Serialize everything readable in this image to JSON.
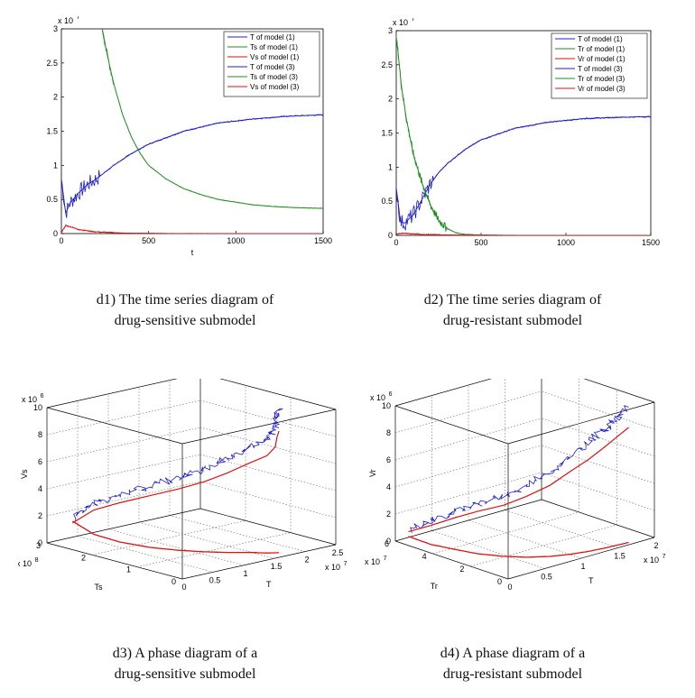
{
  "colors": {
    "T": "#1f1fcc",
    "S": "#1e8f1e",
    "V": "#dd1111",
    "axis": "#000000",
    "grid": "#666666"
  },
  "captions": {
    "d1": {
      "line1": "d1) The time series diagram of",
      "line2": "drug-sensitive submodel"
    },
    "d2": {
      "line1": "d2) The time series diagram of",
      "line2": "drug-resistant submodel"
    },
    "d3": {
      "line1": "d3) A phase diagram of a",
      "line2": "drug-sensitive submodel"
    },
    "d4": {
      "line1": "d4) A phase diagram of a",
      "line2": "drug-resistant submodel"
    }
  },
  "chart_data": [
    {
      "id": "d1",
      "type": "line",
      "title": "",
      "xlabel": "t",
      "ylabel": "",
      "exponent": "x 10^7",
      "exp_base": "x 10",
      "exp_pow": "7",
      "xlim": [
        0,
        1500
      ],
      "ylim": [
        0,
        3
      ],
      "xticks": [
        "0",
        "500",
        "1000",
        "1500"
      ],
      "yticks": [
        "0",
        "0.5",
        "1",
        "1.5",
        "2",
        "2.5",
        "3"
      ],
      "legend": [
        "T of model (1)",
        "Ts of model (1)",
        "Vs of model (1)",
        "T of model (3)",
        "Ts of model (3)",
        "Vs of model (3)"
      ],
      "legend_colors": [
        "T",
        "S",
        "V",
        "T",
        "S",
        "V"
      ],
      "series": [
        {
          "name": "T of model (1)",
          "x": [
            0,
            25,
            50,
            100,
            150,
            200,
            250,
            300,
            400,
            500,
            700,
            900,
            1100,
            1300,
            1500
          ],
          "y": [
            0.8,
            0.3,
            0.45,
            0.6,
            0.72,
            0.8,
            0.9,
            1.0,
            1.17,
            1.31,
            1.5,
            1.62,
            1.68,
            1.72,
            1.74
          ]
        },
        {
          "name": "Ts of model (1)",
          "x": [
            235,
            260,
            300,
            350,
            400,
            450,
            500,
            600,
            700,
            800,
            900,
            1000,
            1100,
            1200,
            1300,
            1400,
            1500
          ],
          "y": [
            3.0,
            2.65,
            2.2,
            1.75,
            1.42,
            1.18,
            1.0,
            0.8,
            0.66,
            0.57,
            0.5,
            0.46,
            0.42,
            0.4,
            0.385,
            0.375,
            0.37
          ]
        },
        {
          "name": "Vs of model (1)",
          "x": [
            0,
            25,
            50,
            100,
            150,
            200,
            300,
            400,
            600,
            1500
          ],
          "y": [
            0.02,
            0.12,
            0.1,
            0.06,
            0.04,
            0.025,
            0.012,
            0.006,
            0.002,
            0.0
          ]
        }
      ]
    },
    {
      "id": "d2",
      "type": "line",
      "title": "",
      "xlabel": "",
      "ylabel": "",
      "exponent": "x 10^7",
      "exp_base": "x 10",
      "exp_pow": "7",
      "xlim": [
        0,
        1500
      ],
      "ylim": [
        0,
        3
      ],
      "xticks": [
        "0",
        "500",
        "1000",
        "1500"
      ],
      "yticks": [
        "0",
        "0.5",
        "1",
        "1.5",
        "2",
        "2.5",
        "3"
      ],
      "legend": [
        "T of model (1)",
        "Tr of model (1)",
        "Vr of model (1)",
        "T of model (3)",
        "Tr of model (3)",
        "Vr of model (3)"
      ],
      "legend_colors": [
        "T",
        "S",
        "V",
        "T",
        "S",
        "V"
      ],
      "series": [
        {
          "name": "T of model (1)",
          "x": [
            0,
            25,
            50,
            100,
            150,
            200,
            250,
            300,
            400,
            500,
            700,
            900,
            1100,
            1300,
            1500
          ],
          "y": [
            0.7,
            0.2,
            0.18,
            0.3,
            0.52,
            0.75,
            0.92,
            1.05,
            1.25,
            1.4,
            1.57,
            1.66,
            1.71,
            1.73,
            1.74
          ]
        },
        {
          "name": "Tr of model (1)",
          "x": [
            0,
            10,
            30,
            60,
            100,
            150,
            200,
            250,
            300,
            350,
            400,
            500,
            700
          ],
          "y": [
            2.9,
            2.7,
            2.2,
            1.7,
            1.2,
            0.78,
            0.45,
            0.22,
            0.1,
            0.04,
            0.015,
            0.004,
            0.0
          ]
        },
        {
          "name": "Vr of model (1)",
          "x": [
            0,
            50,
            100,
            200,
            400,
            700,
            1500
          ],
          "y": [
            0.02,
            0.03,
            0.02,
            0.01,
            0.004,
            0.001,
            0.0
          ]
        }
      ]
    },
    {
      "id": "d3",
      "type": "line",
      "view": "3d",
      "xlabel": "T",
      "ylabel": "Ts",
      "zlabel": "Vs",
      "x_exp_base": "x 10",
      "x_exp_pow": "7",
      "y_exp_base": "x 10",
      "y_exp_pow": "8",
      "z_exp_base": "x 10",
      "z_exp_pow": "6",
      "xlim": [
        0,
        2.5
      ],
      "ylim": [
        0,
        3
      ],
      "zlim": [
        0,
        10
      ],
      "xticks": [
        "0",
        "0.5",
        "1",
        "1.5",
        "2",
        "2.5"
      ],
      "yticks": [
        "0",
        "1",
        "2",
        "3"
      ],
      "zticks": [
        "0",
        "2",
        "4",
        "6",
        "8",
        "10"
      ],
      "series": [
        {
          "name": "model (3)",
          "x": [
            0.05,
            0.25,
            0.45,
            0.65,
            0.85,
            1.05,
            1.25,
            1.45,
            1.6,
            1.7,
            1.7,
            1.72
          ],
          "y": [
            2.5,
            2.3,
            2.0,
            1.6,
            1.25,
            0.95,
            0.7,
            0.5,
            0.3,
            0.25,
            0.22,
            0.2
          ],
          "z": [
            2.2,
            3.3,
            4.0,
            4.8,
            5.5,
            6.2,
            7.0,
            7.8,
            8.5,
            9.2,
            10.0,
            10.6
          ]
        },
        {
          "name": "model (1)",
          "x": [
            0.05,
            0.25,
            0.45,
            0.65,
            0.85,
            1.05,
            1.25,
            1.45,
            1.6,
            1.72
          ],
          "y": [
            2.5,
            2.3,
            2.0,
            1.6,
            1.25,
            0.95,
            0.7,
            0.5,
            0.3,
            0.2
          ],
          "z": [
            2.0,
            1.0,
            0.5,
            0.25,
            0.15,
            0.1,
            0.07,
            0.05,
            0.03,
            0.02
          ]
        }
      ]
    },
    {
      "id": "d4",
      "type": "line",
      "view": "3d",
      "xlabel": "T",
      "ylabel": "Tr",
      "zlabel": "Vr",
      "x_exp_base": "x 10",
      "x_exp_pow": "7",
      "y_exp_base": "x 10",
      "y_exp_pow": "7",
      "z_exp_base": "x 10",
      "z_exp_pow": "6",
      "xlim": [
        0,
        2
      ],
      "ylim": [
        0,
        6
      ],
      "zlim": [
        0,
        10
      ],
      "xticks": [
        "0",
        "0.5",
        "1",
        "1.5",
        "2"
      ],
      "yticks": [
        "0",
        "2",
        "4",
        "6"
      ],
      "zticks": [
        "0",
        "2",
        "4",
        "6",
        "8",
        "10"
      ],
      "series": [
        {
          "name": "model (3)",
          "x": [
            0.05,
            0.1,
            0.2,
            0.3,
            0.45,
            0.6,
            0.8,
            1.0,
            1.2,
            1.4,
            1.55,
            1.7
          ],
          "y": [
            5.5,
            4.5,
            3.6,
            2.8,
            2.0,
            1.4,
            0.9,
            0.6,
            0.4,
            0.3,
            0.25,
            0.2
          ],
          "z": [
            1.0,
            2.0,
            3.0,
            3.8,
            4.5,
            5.3,
            6.2,
            7.2,
            8.0,
            8.8,
            9.4,
            10.0
          ]
        },
        {
          "name": "model (1)",
          "x": [
            0.05,
            0.1,
            0.2,
            0.3,
            0.45,
            0.6,
            0.8,
            1.0,
            1.2,
            1.4,
            1.55,
            1.7
          ],
          "y": [
            5.5,
            4.5,
            3.6,
            2.8,
            2.0,
            1.4,
            0.9,
            0.6,
            0.4,
            0.3,
            0.25,
            0.2
          ],
          "z": [
            0.5,
            0.3,
            0.2,
            0.1,
            0.05,
            0.03,
            0.02,
            0.01,
            0.01,
            0.0,
            0.0,
            0.0
          ]
        }
      ]
    }
  ]
}
